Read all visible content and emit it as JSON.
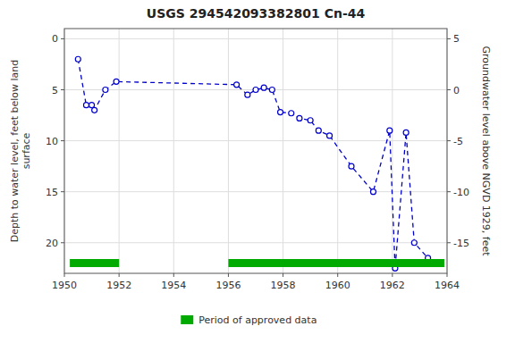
{
  "chart_data": {
    "type": "line",
    "title": "USGS 294542093382801 Cn-44",
    "ylabel": "Depth to water level, feet below land\n surface",
    "y2label": "Groundwater level above NGVD 1929, feet",
    "xlim": [
      1950,
      1964
    ],
    "xticks": [
      1950,
      1952,
      1954,
      1956,
      1958,
      1960,
      1962,
      1964
    ],
    "ylim": [
      23,
      -1
    ],
    "yticks": [
      0,
      5,
      10,
      15,
      20
    ],
    "y2lim": [
      -18,
      6
    ],
    "y2ticks": [
      5,
      0,
      -5,
      -10,
      -15
    ],
    "grid": true,
    "legend": "bottom",
    "series": [
      {
        "type": "line",
        "color": "#0000cc",
        "marker": "circle",
        "line_style": "dashed",
        "x": [
          1950.5,
          1950.8,
          1951.0,
          1951.1,
          1951.5,
          1951.9,
          1956.3,
          1956.7,
          1957.0,
          1957.3,
          1957.6,
          1957.9,
          1958.3,
          1958.6,
          1959.0,
          1959.3,
          1959.7,
          1960.5,
          1961.3,
          1961.9,
          1962.1,
          1962.5,
          1962.8,
          1963.3
        ],
        "values": [
          2.0,
          6.5,
          6.5,
          7.0,
          5.0,
          4.2,
          4.5,
          5.5,
          5.0,
          4.8,
          5.0,
          7.2,
          7.3,
          7.8,
          8.0,
          9.0,
          9.5,
          12.5,
          15.0,
          9.0,
          22.5,
          9.2,
          20.0,
          21.5
        ]
      },
      {
        "type": "period",
        "name": "Period of approved data",
        "color": "#00aa00",
        "x_start": [
          1950.2,
          1956.0
        ],
        "x_end": [
          1952.0,
          1963.9
        ]
      }
    ]
  }
}
